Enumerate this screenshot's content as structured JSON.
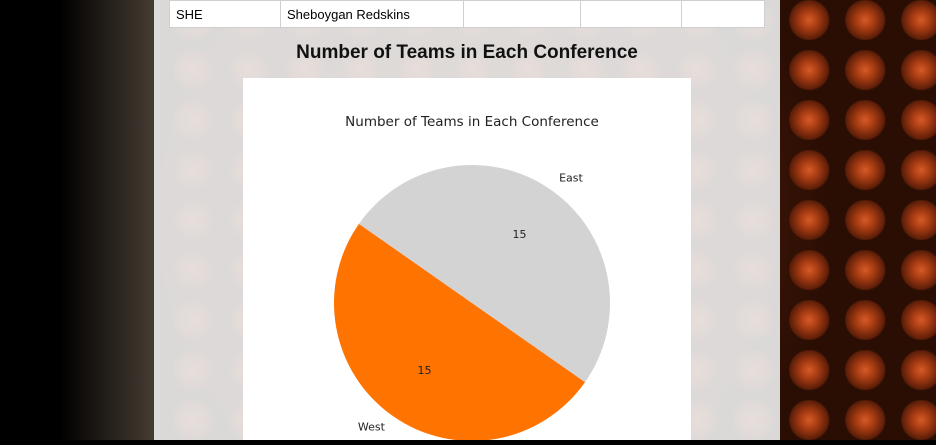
{
  "table": {
    "row": {
      "abbr": "SHE",
      "name": "Sheboygan Redskins",
      "c3": "",
      "c4": "",
      "c5": ""
    }
  },
  "section_title": "Number of Teams in Each Conference",
  "chart_data": {
    "type": "pie",
    "title": "Number of Teams in Each Conference",
    "labels": [
      "West",
      "East"
    ],
    "values": [
      15,
      15
    ],
    "colors": [
      "#ff7300",
      "#d3d3d3"
    ],
    "autopct_labels": [
      "15",
      "15"
    ],
    "startangle": 145
  }
}
